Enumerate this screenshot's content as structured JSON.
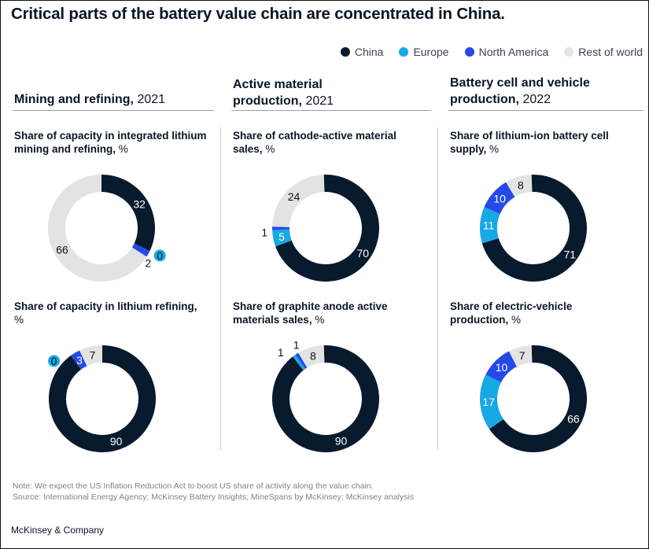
{
  "title": "Critical parts of the battery value chain are concentrated in China.",
  "legend": [
    {
      "label": "China",
      "color": "#071a2e"
    },
    {
      "label": "Europe",
      "color": "#17a8e6"
    },
    {
      "label": "North America",
      "color": "#2549e8"
    },
    {
      "label": "Rest of world",
      "color": "#e3e3e3"
    }
  ],
  "sections": [
    {
      "title": "Mining and refining,",
      "year": "2021"
    },
    {
      "title": "Active material production,",
      "year": "2021"
    },
    {
      "title": "Battery cell and vehicle production,",
      "year": "2022"
    }
  ],
  "chart_data": [
    {
      "type": "pie",
      "title": "Share of capacity in integrated lithium mining and refining,",
      "unit": "%",
      "categories": [
        "China",
        "Europe",
        "North America",
        "Rest of world"
      ],
      "values": [
        32,
        0,
        2,
        66
      ],
      "labels": [
        "32",
        "0",
        "2",
        "66"
      ]
    },
    {
      "type": "pie",
      "title": "Share of capacity in lithium refining,",
      "unit": "%",
      "categories": [
        "China",
        "Europe",
        "North America",
        "Rest of world"
      ],
      "values": [
        90,
        0,
        3,
        7
      ],
      "labels": [
        "90",
        "0",
        "3",
        "7"
      ]
    },
    {
      "type": "pie",
      "title": "Share of cathode-active material sales,",
      "unit": "%",
      "categories": [
        "China",
        "Europe",
        "North America",
        "Rest of world"
      ],
      "values": [
        70,
        5,
        1,
        24
      ],
      "labels": [
        "70",
        "5",
        "1",
        "24"
      ]
    },
    {
      "type": "pie",
      "title": "Share of graphite anode active materials sales,",
      "unit": "%",
      "categories": [
        "China",
        "Europe",
        "North America",
        "Rest of world"
      ],
      "values": [
        90,
        1,
        1,
        8
      ],
      "labels": [
        "90",
        "1",
        "1",
        "8"
      ]
    },
    {
      "type": "pie",
      "title": "Share of lithium-ion battery cell supply,",
      "unit": "%",
      "categories": [
        "China",
        "Europe",
        "North America",
        "Rest of world"
      ],
      "values": [
        71,
        11,
        10,
        8
      ],
      "labels": [
        "71",
        "11",
        "10",
        "8"
      ]
    },
    {
      "type": "pie",
      "title": "Share of electric-vehicle production,",
      "unit": "%",
      "categories": [
        "China",
        "Europe",
        "North America",
        "Rest of world"
      ],
      "values": [
        66,
        17,
        10,
        7
      ],
      "labels": [
        "66",
        "17",
        "10",
        "7"
      ]
    }
  ],
  "footnote": {
    "note": "Note: We expect the US Inflation Reduction Act to boost US share of activity along the value chain.",
    "source": "Source: International Energy Agency; McKinsey Battery Insights; MineSpans by McKinsey; McKinsey analysis"
  },
  "brand": "McKinsey & Company"
}
